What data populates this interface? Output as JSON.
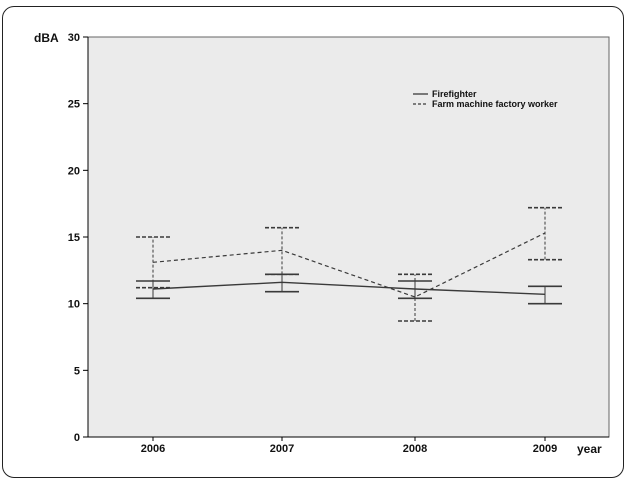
{
  "chart_data": {
    "type": "line",
    "title": "",
    "ylabel": "dBA",
    "xlabel": "year",
    "categories": [
      "2006",
      "2007",
      "2008",
      "2009"
    ],
    "ylim": [
      0,
      30
    ],
    "yticks": [
      0,
      5,
      10,
      15,
      20,
      25,
      30
    ],
    "legend_position": "top-right",
    "grid": false,
    "colors": {
      "plot_background": "#ebebeb",
      "line": "#3a3a3a",
      "axis": "#000000"
    },
    "series": [
      {
        "name": "Firefighter",
        "style": "solid",
        "values": [
          11.1,
          11.6,
          11.1,
          10.7
        ],
        "error_low": [
          10.4,
          10.9,
          10.4,
          10.0
        ],
        "error_high": [
          11.7,
          12.2,
          11.7,
          11.3
        ]
      },
      {
        "name": "Farm machine factory worker",
        "style": "dashed",
        "values": [
          13.1,
          14.0,
          10.5,
          15.3
        ],
        "error_low": [
          11.2,
          12.2,
          8.7,
          13.3
        ],
        "error_high": [
          15.0,
          15.7,
          12.2,
          17.2
        ]
      }
    ]
  }
}
